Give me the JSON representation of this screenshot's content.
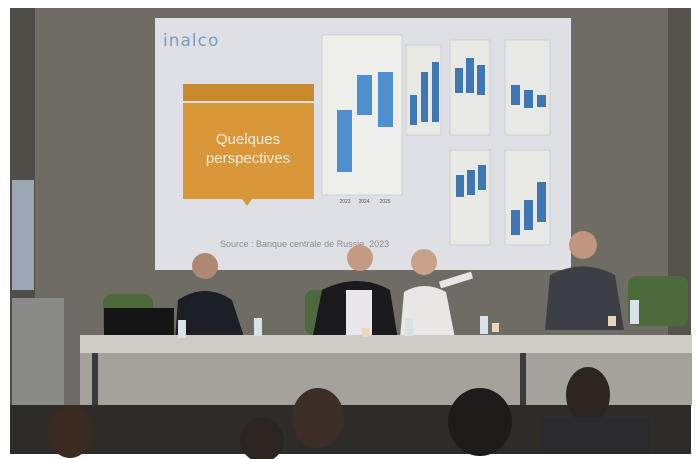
{
  "slide": {
    "logo": "inalco",
    "title_lines": [
      "Quelques",
      "perspectives"
    ],
    "source": "Source : Banque centrale de Russie, 2023",
    "chart_years": [
      "2023",
      "2024",
      "2025"
    ]
  }
}
